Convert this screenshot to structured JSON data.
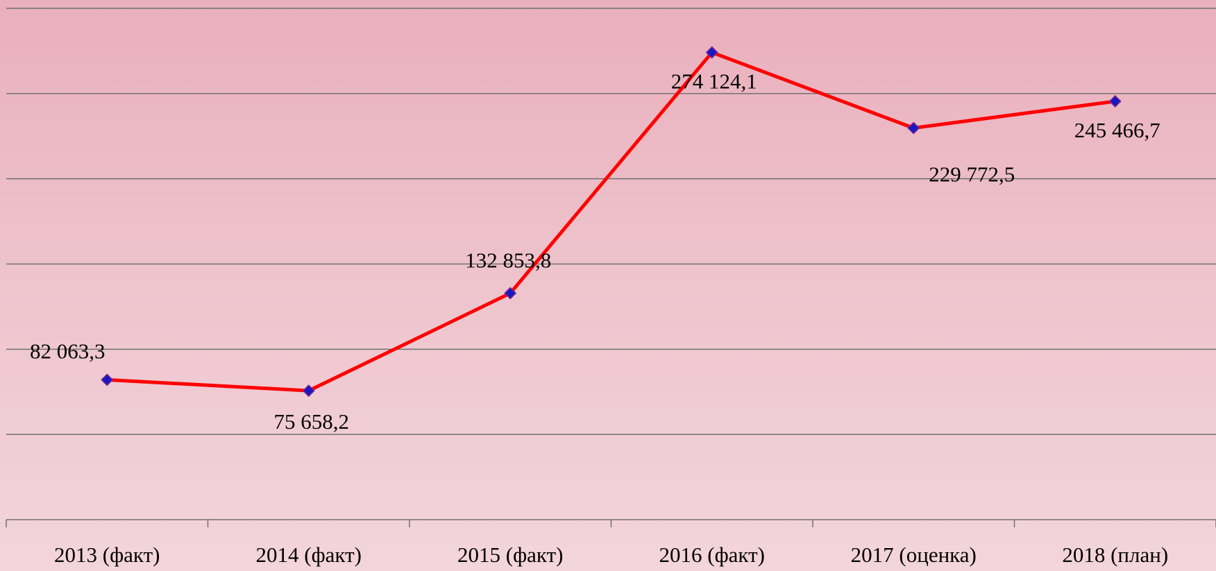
{
  "chart_data": {
    "type": "line",
    "categories": [
      "2013 (факт)",
      "2014 (факт)",
      "2015 (факт)",
      "2016 (факт)",
      "2017 (оценка)",
      "2018 (план)"
    ],
    "series": [
      {
        "color": "#ff0000",
        "marker_color": "#1a16c4",
        "values": [
          82063.3,
          75658.2,
          132853.8,
          274124.1,
          229772.5,
          245466.7
        ],
        "value_labels": [
          "82 063,3",
          "75 658,2",
          "132 853,8",
          "274 124,1",
          "229 772,5",
          "245 466,7"
        ]
      }
    ],
    "ylim": [
      0,
      300000
    ],
    "yticks": [
      0,
      50000,
      100000,
      150000,
      200000,
      250000,
      300000
    ],
    "grid": true
  }
}
